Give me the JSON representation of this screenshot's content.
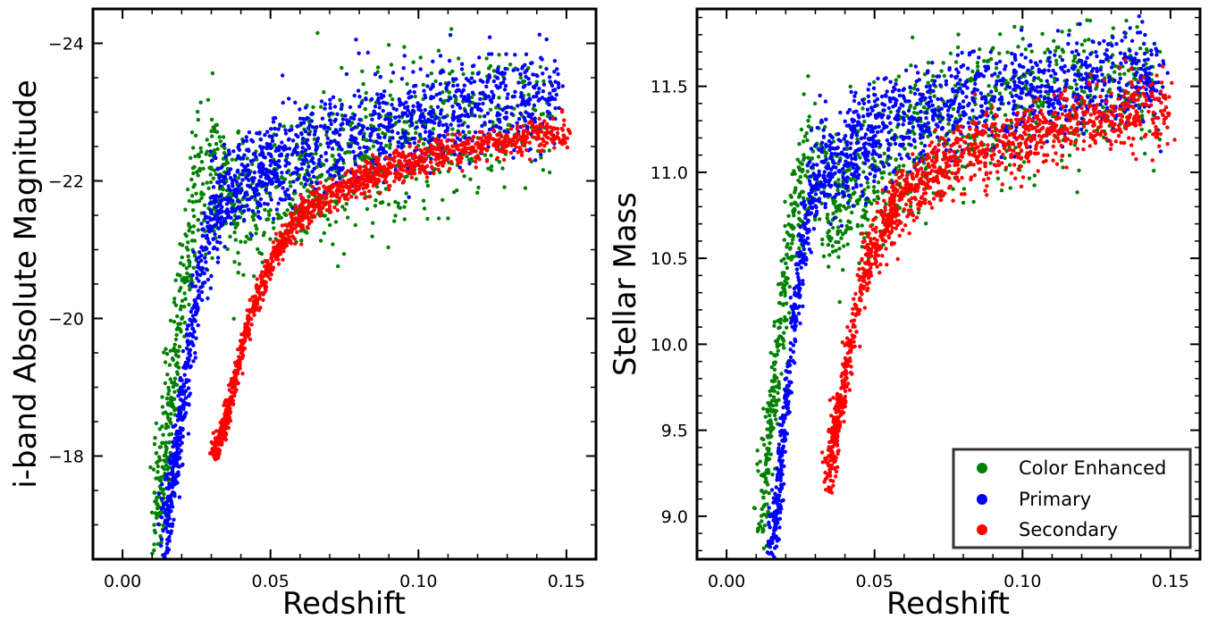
{
  "colors": {
    "color_enhanced": "#008000",
    "primary": "#0000ff",
    "secondary": "#ff0000",
    "frame": "#000000",
    "legend_border": "#333333"
  },
  "chart_data": [
    {
      "type": "scatter",
      "title": "",
      "xlabel": "Redshift",
      "ylabel": "i-band Absolute Magnitude",
      "xlim": [
        -0.01,
        0.16
      ],
      "ylim": [
        -16.5,
        -24.5
      ],
      "y_inverted": true,
      "x_ticks": [
        0.0,
        0.05,
        0.1,
        0.15
      ],
      "x_tick_labels": [
        "0.00",
        "0.05",
        "0.10",
        "0.15"
      ],
      "y_ticks": [
        -18,
        -20,
        -22,
        -24
      ],
      "y_tick_labels": [
        "−18",
        "−20",
        "−22",
        "−24"
      ],
      "grid": false,
      "legend": "none",
      "series": [
        {
          "name": "Color Enhanced",
          "color": "#008000",
          "trend": [
            [
              0.012,
              -17.4
            ],
            [
              0.016,
              -18.6
            ],
            [
              0.019,
              -19.8
            ],
            [
              0.022,
              -21.0
            ],
            [
              0.025,
              -21.8
            ],
            [
              0.03,
              -22.2
            ],
            [
              0.035,
              -21.9
            ],
            [
              0.045,
              -21.6
            ],
            [
              0.06,
              -22.0
            ],
            [
              0.08,
              -22.3
            ],
            [
              0.1,
              -22.6
            ],
            [
              0.12,
              -22.9
            ],
            [
              0.145,
              -23.0
            ]
          ],
          "spread_y": 0.55
        },
        {
          "name": "Primary",
          "color": "#0000ff",
          "trend": [
            [
              0.015,
              -17.0
            ],
            [
              0.018,
              -18.0
            ],
            [
              0.021,
              -19.0
            ],
            [
              0.024,
              -20.0
            ],
            [
              0.027,
              -20.9
            ],
            [
              0.03,
              -21.5
            ],
            [
              0.035,
              -21.8
            ],
            [
              0.045,
              -22.1
            ],
            [
              0.06,
              -22.4
            ],
            [
              0.08,
              -22.7
            ],
            [
              0.1,
              -22.9
            ],
            [
              0.12,
              -23.1
            ],
            [
              0.148,
              -23.2
            ]
          ],
          "spread_y": 0.35
        },
        {
          "name": "Secondary",
          "color": "#ff0000",
          "trend": [
            [
              0.032,
              -18.1
            ],
            [
              0.035,
              -18.5
            ],
            [
              0.039,
              -19.3
            ],
            [
              0.043,
              -20.0
            ],
            [
              0.047,
              -20.5
            ],
            [
              0.052,
              -21.0
            ],
            [
              0.06,
              -21.5
            ],
            [
              0.07,
              -21.8
            ],
            [
              0.08,
              -22.0
            ],
            [
              0.1,
              -22.3
            ],
            [
              0.12,
              -22.5
            ],
            [
              0.15,
              -22.7
            ]
          ],
          "spread_y": 0.12
        }
      ]
    },
    {
      "type": "scatter",
      "title": "",
      "xlabel": "Redshift",
      "ylabel": "Stellar Mass",
      "xlim": [
        -0.01,
        0.16
      ],
      "ylim": [
        8.75,
        11.95
      ],
      "x_ticks": [
        0.0,
        0.05,
        0.1,
        0.15
      ],
      "x_tick_labels": [
        "0.00",
        "0.05",
        "0.10",
        "0.15"
      ],
      "y_ticks": [
        9.0,
        9.5,
        10.0,
        10.5,
        11.0,
        11.5
      ],
      "y_tick_labels": [
        "9.0",
        "9.5",
        "10.0",
        "10.5",
        "11.0",
        "11.5"
      ],
      "grid": false,
      "legend": "lower-right",
      "series": [
        {
          "name": "Color Enhanced",
          "color": "#008000",
          "trend": [
            [
              0.012,
              9.0
            ],
            [
              0.016,
              9.7
            ],
            [
              0.02,
              10.4
            ],
            [
              0.024,
              10.9
            ],
            [
              0.028,
              11.1
            ],
            [
              0.035,
              10.8
            ],
            [
              0.045,
              10.9
            ],
            [
              0.06,
              11.1
            ],
            [
              0.08,
              11.3
            ],
            [
              0.1,
              11.4
            ],
            [
              0.12,
              11.5
            ],
            [
              0.145,
              11.5
            ]
          ],
          "spread_y": 0.22
        },
        {
          "name": "Primary",
          "color": "#0000ff",
          "trend": [
            [
              0.016,
              8.85
            ],
            [
              0.019,
              9.4
            ],
            [
              0.022,
              10.0
            ],
            [
              0.025,
              10.5
            ],
            [
              0.028,
              10.8
            ],
            [
              0.033,
              11.0
            ],
            [
              0.045,
              11.15
            ],
            [
              0.06,
              11.3
            ],
            [
              0.08,
              11.4
            ],
            [
              0.1,
              11.45
            ],
            [
              0.12,
              11.52
            ],
            [
              0.148,
              11.58
            ]
          ],
          "spread_y": 0.14
        },
        {
          "name": "Secondary",
          "color": "#ff0000",
          "trend": [
            [
              0.035,
              9.3
            ],
            [
              0.039,
              9.7
            ],
            [
              0.043,
              10.1
            ],
            [
              0.047,
              10.45
            ],
            [
              0.052,
              10.65
            ],
            [
              0.06,
              10.85
            ],
            [
              0.07,
              11.0
            ],
            [
              0.08,
              11.1
            ],
            [
              0.1,
              11.2
            ],
            [
              0.12,
              11.3
            ],
            [
              0.15,
              11.38
            ]
          ],
          "spread_y": 0.1
        }
      ]
    }
  ],
  "legend": {
    "items": [
      {
        "label": "Color Enhanced",
        "color": "#008000"
      },
      {
        "label": "Primary",
        "color": "#0000ff"
      },
      {
        "label": "Secondary",
        "color": "#ff0000"
      }
    ]
  }
}
